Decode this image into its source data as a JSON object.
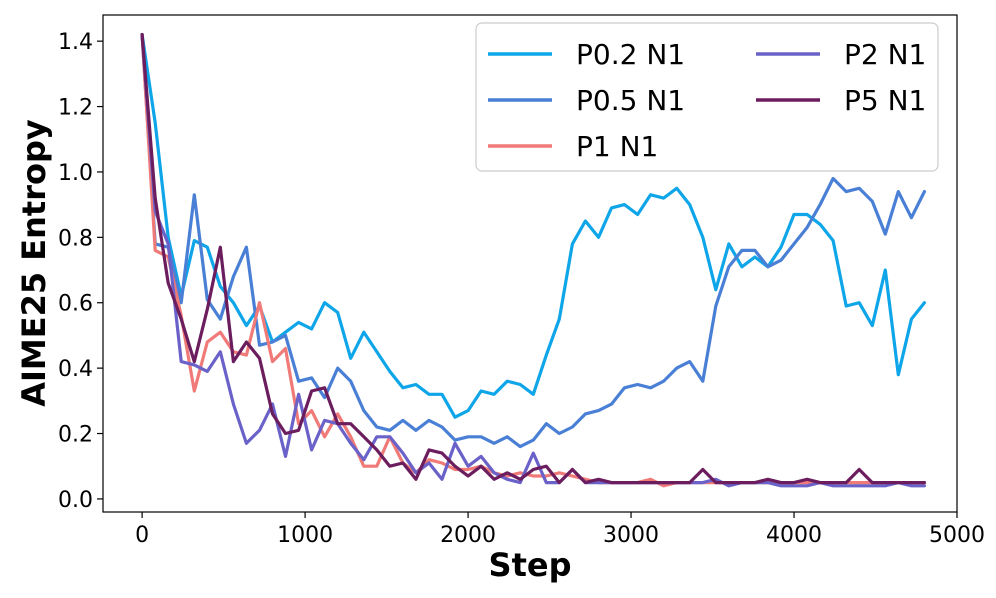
{
  "chart_data": {
    "type": "line",
    "title": "",
    "xlabel": "Step",
    "ylabel": "AIME25 Entropy",
    "xlim": [
      -240,
      5000
    ],
    "ylim": [
      -0.04,
      1.48
    ],
    "xticks": [
      0,
      1000,
      2000,
      3000,
      4000,
      5000
    ],
    "yticks": [
      0.0,
      0.2,
      0.4,
      0.6,
      0.8,
      1.0,
      1.2,
      1.4
    ],
    "xtick_labels": [
      "0",
      "1000",
      "2000",
      "3000",
      "4000",
      "5000"
    ],
    "ytick_labels": [
      "0.0",
      "0.2",
      "0.4",
      "0.6",
      "0.8",
      "1.0",
      "1.2",
      "1.4"
    ],
    "grid": false,
    "legend_position": "top-right",
    "legend_columns": 2,
    "series": [
      {
        "name": "P0.2 N1",
        "color": "#0EA5E9",
        "x": [
          0,
          80,
          160,
          240,
          320,
          400,
          480,
          560,
          640,
          720,
          800,
          880,
          960,
          1040,
          1120,
          1200,
          1280,
          1360,
          1440,
          1520,
          1600,
          1680,
          1760,
          1840,
          1920,
          2000,
          2080,
          2160,
          2240,
          2320,
          2400,
          2480,
          2560,
          2640,
          2720,
          2800,
          2880,
          2960,
          3040,
          3120,
          3200,
          3280,
          3360,
          3440,
          3520,
          3600,
          3680,
          3760,
          3840,
          3920,
          4000,
          4080,
          4160,
          4240,
          4320,
          4400,
          4480,
          4560,
          4640,
          4720,
          4800
        ],
        "y": [
          1.42,
          1.15,
          0.8,
          0.62,
          0.79,
          0.77,
          0.65,
          0.6,
          0.53,
          0.59,
          0.48,
          0.51,
          0.54,
          0.52,
          0.6,
          0.57,
          0.43,
          0.51,
          0.45,
          0.39,
          0.34,
          0.35,
          0.32,
          0.32,
          0.25,
          0.27,
          0.33,
          0.32,
          0.36,
          0.35,
          0.32,
          0.44,
          0.55,
          0.78,
          0.85,
          0.8,
          0.89,
          0.9,
          0.87,
          0.93,
          0.92,
          0.95,
          0.9,
          0.8,
          0.64,
          0.78,
          0.71,
          0.74,
          0.71,
          0.77,
          0.87,
          0.87,
          0.84,
          0.79,
          0.59,
          0.6,
          0.53,
          0.7,
          0.38,
          0.55,
          0.6
        ]
      },
      {
        "name": "P0.5 N1",
        "color": "#4A7FD6",
        "x": [
          0,
          80,
          160,
          240,
          320,
          400,
          480,
          560,
          640,
          720,
          800,
          880,
          960,
          1040,
          1120,
          1200,
          1280,
          1360,
          1440,
          1520,
          1600,
          1680,
          1760,
          1840,
          1920,
          2000,
          2080,
          2160,
          2240,
          2320,
          2400,
          2480,
          2560,
          2640,
          2720,
          2800,
          2880,
          2960,
          3040,
          3120,
          3200,
          3280,
          3360,
          3440,
          3520,
          3600,
          3680,
          3760,
          3840,
          3920,
          4000,
          4080,
          4160,
          4240,
          4320,
          4400,
          4480,
          4560,
          4640,
          4720,
          4800
        ],
        "y": [
          1.42,
          0.78,
          0.77,
          0.6,
          0.93,
          0.61,
          0.55,
          0.68,
          0.77,
          0.47,
          0.48,
          0.5,
          0.36,
          0.37,
          0.31,
          0.4,
          0.36,
          0.27,
          0.22,
          0.21,
          0.24,
          0.21,
          0.24,
          0.22,
          0.18,
          0.19,
          0.19,
          0.17,
          0.19,
          0.16,
          0.18,
          0.23,
          0.2,
          0.22,
          0.26,
          0.27,
          0.29,
          0.34,
          0.35,
          0.34,
          0.36,
          0.4,
          0.42,
          0.36,
          0.59,
          0.71,
          0.76,
          0.76,
          0.71,
          0.73,
          0.78,
          0.83,
          0.9,
          0.98,
          0.94,
          0.95,
          0.91,
          0.81,
          0.94,
          0.86,
          0.94
        ]
      },
      {
        "name": "P1 N1",
        "color": "#F07A78",
        "x": [
          0,
          80,
          160,
          240,
          320,
          400,
          480,
          560,
          640,
          720,
          800,
          880,
          960,
          1040,
          1120,
          1200,
          1280,
          1360,
          1440,
          1520,
          1600,
          1680,
          1760,
          1840,
          1920,
          2000,
          2080,
          2160,
          2240,
          2320,
          2400,
          2480,
          2560,
          2640,
          2720,
          2800,
          2880,
          2960,
          3040,
          3120,
          3200,
          3280,
          3360,
          3440,
          3520,
          3600,
          3680,
          3760,
          3840,
          3920,
          4000,
          4080,
          4160,
          4240,
          4320,
          4400,
          4480,
          4560,
          4640,
          4720,
          4800
        ],
        "y": [
          1.42,
          0.76,
          0.74,
          0.56,
          0.33,
          0.48,
          0.51,
          0.45,
          0.44,
          0.6,
          0.42,
          0.46,
          0.23,
          0.27,
          0.19,
          0.26,
          0.19,
          0.1,
          0.1,
          0.19,
          0.11,
          0.08,
          0.12,
          0.11,
          0.09,
          0.09,
          0.1,
          0.08,
          0.07,
          0.08,
          0.07,
          0.07,
          0.08,
          0.07,
          0.06,
          0.05,
          0.05,
          0.05,
          0.05,
          0.06,
          0.04,
          0.05,
          0.05,
          0.05,
          0.05,
          0.05,
          0.05,
          0.05,
          0.05,
          0.05,
          0.05,
          0.05,
          0.05,
          0.05,
          0.05,
          0.05,
          0.05,
          0.05,
          0.05,
          0.05,
          0.05
        ]
      },
      {
        "name": "P2 N1",
        "color": "#6A62C8",
        "x": [
          0,
          80,
          160,
          240,
          320,
          400,
          480,
          560,
          640,
          720,
          800,
          880,
          960,
          1040,
          1120,
          1200,
          1280,
          1360,
          1440,
          1520,
          1600,
          1680,
          1760,
          1840,
          1920,
          2000,
          2080,
          2160,
          2240,
          2320,
          2400,
          2480,
          2560,
          2640,
          2720,
          2800,
          2880,
          2960,
          3040,
          3120,
          3200,
          3280,
          3360,
          3440,
          3520,
          3600,
          3680,
          3760,
          3840,
          3920,
          4000,
          4080,
          4160,
          4240,
          4320,
          4400,
          4480,
          4560,
          4640,
          4720,
          4800
        ],
        "y": [
          1.42,
          0.88,
          0.78,
          0.42,
          0.41,
          0.39,
          0.45,
          0.29,
          0.17,
          0.21,
          0.29,
          0.13,
          0.32,
          0.15,
          0.24,
          0.23,
          0.17,
          0.12,
          0.19,
          0.19,
          0.14,
          0.08,
          0.11,
          0.06,
          0.17,
          0.1,
          0.13,
          0.08,
          0.06,
          0.05,
          0.14,
          0.05,
          0.05,
          0.09,
          0.05,
          0.05,
          0.05,
          0.05,
          0.05,
          0.05,
          0.05,
          0.05,
          0.05,
          0.05,
          0.06,
          0.04,
          0.05,
          0.05,
          0.05,
          0.04,
          0.04,
          0.04,
          0.05,
          0.04,
          0.04,
          0.04,
          0.04,
          0.04,
          0.05,
          0.04,
          0.04
        ]
      },
      {
        "name": "P5 N1",
        "color": "#6B1D5E",
        "x": [
          0,
          80,
          160,
          240,
          320,
          400,
          480,
          560,
          640,
          720,
          800,
          880,
          960,
          1040,
          1120,
          1200,
          1280,
          1360,
          1440,
          1520,
          1600,
          1680,
          1760,
          1840,
          1920,
          2000,
          2080,
          2160,
          2240,
          2320,
          2400,
          2480,
          2560,
          2640,
          2720,
          2800,
          2880,
          2960,
          3040,
          3120,
          3200,
          3280,
          3360,
          3440,
          3520,
          3600,
          3680,
          3760,
          3840,
          3920,
          4000,
          4080,
          4160,
          4240,
          4320,
          4400,
          4480,
          4560,
          4640,
          4720,
          4800
        ],
        "y": [
          1.42,
          0.92,
          0.66,
          0.55,
          0.42,
          0.58,
          0.77,
          0.42,
          0.48,
          0.43,
          0.26,
          0.2,
          0.21,
          0.33,
          0.34,
          0.23,
          0.23,
          0.19,
          0.15,
          0.1,
          0.11,
          0.06,
          0.15,
          0.14,
          0.1,
          0.07,
          0.1,
          0.06,
          0.08,
          0.06,
          0.09,
          0.1,
          0.05,
          0.09,
          0.05,
          0.06,
          0.05,
          0.05,
          0.05,
          0.05,
          0.05,
          0.05,
          0.05,
          0.09,
          0.05,
          0.05,
          0.05,
          0.05,
          0.06,
          0.05,
          0.05,
          0.06,
          0.05,
          0.05,
          0.05,
          0.09,
          0.05,
          0.05,
          0.05,
          0.05,
          0.05
        ]
      }
    ]
  }
}
